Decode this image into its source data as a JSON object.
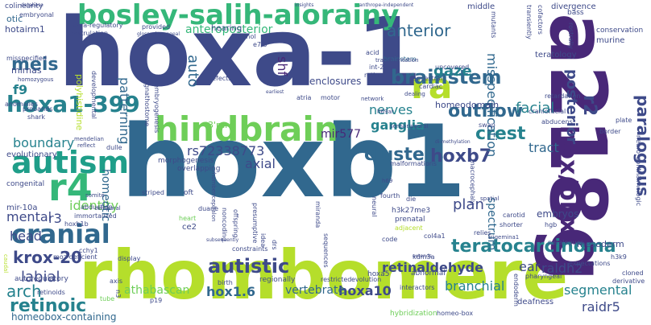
{
  "cloud": {
    "words": [
      {
        "text": "hoxa-1",
        "color": "#3e4a89"
      },
      {
        "text": "hoxb1",
        "color": "#31688e"
      },
      {
        "text": "rhombomere",
        "color": "#b5de2b"
      },
      {
        "text": "a218g",
        "color": "#482878"
      },
      {
        "text": "bosley-salih-alorainy",
        "color": "#35b779"
      },
      {
        "text": "hindbrain",
        "color": "#6ece58"
      },
      {
        "text": "hoxa1-399",
        "color": "#26828e"
      },
      {
        "text": "autism",
        "color": "#1f9e89"
      },
      {
        "text": "r4",
        "color": "#35b779"
      },
      {
        "text": "cranial",
        "color": "#31688e"
      },
      {
        "text": "hox/pbx",
        "color": "#482878"
      },
      {
        "text": "ra",
        "color": "#b5de2b"
      },
      {
        "text": "brainstem",
        "color": "#31688e"
      },
      {
        "text": "anterior",
        "color": "#31688e"
      },
      {
        "text": "outflow",
        "color": "#31688e"
      },
      {
        "text": "clusters",
        "color": "#31688e"
      },
      {
        "text": "crest",
        "color": "#26828e"
      },
      {
        "text": "teratocarcinoma",
        "color": "#26828e"
      },
      {
        "text": "retinaldehyde",
        "color": "#3e4a89"
      },
      {
        "text": "autistic",
        "color": "#3e4a89"
      },
      {
        "text": "krox-20",
        "color": "#3e4a89"
      },
      {
        "text": "retinoic",
        "color": "#26828e"
      },
      {
        "text": "meis",
        "color": "#31688e"
      },
      {
        "text": "labial",
        "color": "#3e4a89"
      },
      {
        "text": "paralogous",
        "color": "#3e4a89"
      },
      {
        "text": "posterior",
        "color": "#3e4a89"
      },
      {
        "text": "r2",
        "color": "#3e4a89"
      },
      {
        "text": "hoxb7",
        "color": "#3e4a89"
      },
      {
        "text": "gaze",
        "color": "#26828e"
      },
      {
        "text": "nerves",
        "color": "#26828e"
      },
      {
        "text": "ganglia",
        "color": "#26828e"
      },
      {
        "text": "facial",
        "color": "#26828e"
      },
      {
        "text": "f9",
        "color": "#26828e"
      },
      {
        "text": "hox1.6",
        "color": "#31688e"
      },
      {
        "text": "hoxa10",
        "color": "#3e4a89"
      },
      {
        "text": "branchial",
        "color": "#26828e"
      },
      {
        "text": "segmental",
        "color": "#26828e"
      },
      {
        "text": "raldh2",
        "color": "#3e4a89"
      },
      {
        "text": "ear",
        "color": "#3e4a89"
      },
      {
        "text": "plan",
        "color": "#3e4a89"
      },
      {
        "text": "spectrum",
        "color": "#31688e"
      },
      {
        "text": "axial",
        "color": "#3e4a89"
      },
      {
        "text": "rs72338773",
        "color": "#3e4a89"
      },
      {
        "text": "mir577",
        "color": "#482878"
      },
      {
        "text": "boundary",
        "color": "#26828e"
      },
      {
        "text": "identity",
        "color": "#6ece58"
      },
      {
        "text": "arch",
        "color": "#26828e"
      },
      {
        "text": "head",
        "color": "#3e4a89"
      },
      {
        "text": "mental",
        "color": "#3e4a89"
      },
      {
        "text": "r3",
        "color": "#3e4a89"
      },
      {
        "text": "auto",
        "color": "#31688e"
      },
      {
        "text": "shf",
        "color": "#482878"
      },
      {
        "text": "patterning",
        "color": "#31688e"
      },
      {
        "text": "homeotic",
        "color": "#31688e"
      },
      {
        "text": "misspecification",
        "color": "#31688e"
      },
      {
        "text": "tract",
        "color": "#31688e"
      },
      {
        "text": "athabascan",
        "color": "#6ece58"
      },
      {
        "text": "vertebrate",
        "color": "#31688e"
      },
      {
        "text": "raidr5",
        "color": "#3e4a89"
      },
      {
        "text": "anteroposterior",
        "color": "#35b779"
      },
      {
        "text": "homeobox-containing",
        "color": "#31688e"
      },
      {
        "text": "brainstem",
        "color": "#31688e"
      },
      {
        "text": "enclosures",
        "color": "#3e4a89"
      },
      {
        "text": "homeodomain",
        "color": "#3e4a89"
      },
      {
        "text": "embryos",
        "color": "#3e4a89"
      },
      {
        "text": "mesoderm",
        "color": "#3e4a89"
      },
      {
        "text": "3'rare",
        "color": "#6ece58"
      },
      {
        "text": "hotairm1",
        "color": "#3e4a89"
      },
      {
        "text": "mirnas",
        "color": "#3e4a89"
      },
      {
        "text": "mir-10a",
        "color": "#3e4a89"
      },
      {
        "text": "polyhistidine",
        "color": "#b5de2b"
      },
      {
        "text": "evolutionary",
        "color": "#3e4a89"
      },
      {
        "text": "congenital",
        "color": "#3e4a89"
      },
      {
        "text": "autoregulatory",
        "color": "#3e4a89"
      },
      {
        "text": "retinoids",
        "color": "#3e4a89"
      },
      {
        "text": "colinearity",
        "color": "#3e4a89"
      },
      {
        "text": "otic",
        "color": "#31688e"
      },
      {
        "text": "embryonal",
        "color": "#3e4a89"
      },
      {
        "text": "hearing",
        "color": "#3e4a89"
      },
      {
        "text": "gastrulation",
        "color": "#3e4a89"
      },
      {
        "text": "para-regulatory",
        "color": "#3e4a89"
      },
      {
        "text": "provided",
        "color": "#3e4a89"
      },
      {
        "text": "retinol",
        "color": "#3e4a89"
      },
      {
        "text": "e7.5",
        "color": "#3e4a89"
      },
      {
        "text": "int-2",
        "color": "#3e4a89"
      },
      {
        "text": "retinyl",
        "color": "#3e4a89"
      },
      {
        "text": "homozygous",
        "color": "#3e4a89"
      },
      {
        "text": "misspecified",
        "color": "#3e4a89"
      },
      {
        "text": "anomalies",
        "color": "#3e4a89"
      },
      {
        "text": "probands",
        "color": "#3e4a89"
      },
      {
        "text": "shark",
        "color": "#3e4a89"
      },
      {
        "text": "mendelian",
        "color": "#3e4a89"
      },
      {
        "text": "reflect",
        "color": "#3e4a89"
      },
      {
        "text": "dulle",
        "color": "#3e4a89"
      },
      {
        "text": "morphogenesis",
        "color": "#3e4a89"
      },
      {
        "text": "overlapping",
        "color": "#3e4a89"
      },
      {
        "text": "malformations",
        "color": "#3e4a89"
      },
      {
        "text": "h69ar",
        "color": "#3e4a89"
      },
      {
        "text": "sensorineural",
        "color": "#3e4a89"
      },
      {
        "text": "network",
        "color": "#3e4a89"
      },
      {
        "text": "atria",
        "color": "#3e4a89"
      },
      {
        "text": "motor",
        "color": "#3e4a89"
      },
      {
        "text": "defects",
        "color": "#3e4a89"
      },
      {
        "text": "developmental",
        "color": "#3e4a89"
      },
      {
        "text": "earliest",
        "color": "#3e4a89"
      },
      {
        "text": "dealing",
        "color": "#3e4a89"
      },
      {
        "text": "ancestral",
        "color": "#3e4a89"
      },
      {
        "text": "cardiac",
        "color": "#3e4a89"
      },
      {
        "text": "uncovered",
        "color": "#3e4a89"
      },
      {
        "text": "acid",
        "color": "#3e4a89"
      },
      {
        "text": "divergence",
        "color": "#3e4a89"
      },
      {
        "text": "conservation",
        "color": "#3e4a89"
      },
      {
        "text": "murine",
        "color": "#3e4a89"
      },
      {
        "text": "teratology",
        "color": "#3e4a89"
      },
      {
        "text": "middle",
        "color": "#3e4a89"
      },
      {
        "text": "bass",
        "color": "#3e4a89"
      },
      {
        "text": "retardation",
        "color": "#3e4a89"
      },
      {
        "text": "abducens",
        "color": "#3e4a89"
      },
      {
        "text": "craniofacial",
        "color": "#3e4a89"
      },
      {
        "text": "border",
        "color": "#3e4a89"
      },
      {
        "text": "plate",
        "color": "#3e4a89"
      },
      {
        "text": "neuro-ophthalmologic",
        "color": "#3e4a89"
      },
      {
        "text": "swap",
        "color": "#3e4a89"
      },
      {
        "text": "di-methylation",
        "color": "#3e4a89"
      },
      {
        "text": "h69",
        "color": "#3e4a89"
      },
      {
        "text": "fourth",
        "color": "#3e4a89"
      },
      {
        "text": "die",
        "color": "#3e4a89"
      },
      {
        "text": "h3k27me3",
        "color": "#3e4a89"
      },
      {
        "text": "prenatal",
        "color": "#3e4a89"
      },
      {
        "text": "adjacent",
        "color": "#b5de2b"
      },
      {
        "text": "col4a1",
        "color": "#3e4a89"
      },
      {
        "text": "carotid",
        "color": "#3e4a89"
      },
      {
        "text": "shorter",
        "color": "#3e4a89"
      },
      {
        "text": "relies",
        "color": "#3e4a89"
      },
      {
        "text": "trigemina1",
        "color": "#3e4a89"
      },
      {
        "text": "spatial",
        "color": "#3e4a89"
      },
      {
        "text": "paralogues",
        "color": "#3e4a89"
      },
      {
        "text": "h3k9",
        "color": "#3e4a89"
      },
      {
        "text": "expectations",
        "color": "#3e4a89"
      },
      {
        "text": "cloned",
        "color": "#3e4a89"
      },
      {
        "text": "derivative",
        "color": "#3e4a89"
      },
      {
        "text": "pharyngeal",
        "color": "#3e4a89"
      },
      {
        "text": "deafness",
        "color": "#3e4a89"
      },
      {
        "text": "homeo-box",
        "color": "#3e4a89"
      },
      {
        "text": "hoxa5",
        "color": "#3e4a89"
      },
      {
        "text": "abnormal",
        "color": "#3e4a89"
      },
      {
        "text": "interactors",
        "color": "#3e4a89"
      },
      {
        "text": "restricted",
        "color": "#3e4a89"
      },
      {
        "text": "evolution",
        "color": "#3e4a89"
      },
      {
        "text": "kdm3a",
        "color": "#3e4a89"
      },
      {
        "text": "code",
        "color": "#3e4a89"
      },
      {
        "text": "neural",
        "color": "#3e4a89"
      },
      {
        "text": "sequences",
        "color": "#3e4a89"
      },
      {
        "text": "miranda",
        "color": "#3e4a89"
      },
      {
        "text": "idea",
        "color": "#3e4a89"
      },
      {
        "text": "drs",
        "color": "#3e4a89"
      },
      {
        "text": "regionally",
        "color": "#3e4a89"
      },
      {
        "text": "birth",
        "color": "#3e4a89"
      },
      {
        "text": "noncoding",
        "color": "#3e4a89"
      },
      {
        "text": "offspring",
        "color": "#3e4a89"
      },
      {
        "text": "presumptive",
        "color": "#3e4a89"
      },
      {
        "text": "duane",
        "color": "#3e4a89"
      },
      {
        "text": "heart",
        "color": "#6ece58"
      },
      {
        "text": "ce2",
        "color": "#3e4a89"
      },
      {
        "text": "striped",
        "color": "#3e4a89"
      },
      {
        "text": "immortalized",
        "color": "#3e4a89"
      },
      {
        "text": "abduction",
        "color": "#3e4a89"
      },
      {
        "text": "hoxb1b",
        "color": "#3e4a89"
      },
      {
        "text": "moz-deficient",
        "color": "#3e4a89"
      },
      {
        "text": "somite",
        "color": "#3e4a89"
      },
      {
        "text": "temporal",
        "color": "#3e4a89"
      },
      {
        "text": "cchy1",
        "color": "#3e4a89"
      },
      {
        "text": "display",
        "color": "#3e4a89"
      },
      {
        "text": "axis",
        "color": "#3e4a89"
      },
      {
        "text": "p19",
        "color": "#3e4a89"
      },
      {
        "text": "tube",
        "color": "#6ece58"
      },
      {
        "text": "n3",
        "color": "#3e4a89"
      },
      {
        "text": "caudal",
        "color": "#b5de2b"
      },
      {
        "text": "embryogenesis",
        "color": "#3e4a89"
      },
      {
        "text": "gnathostome",
        "color": "#3e4a89"
      },
      {
        "text": "oft",
        "color": "#3e4a89"
      },
      {
        "text": "hgb",
        "color": "#3e4a89"
      },
      {
        "text": "endoderm",
        "color": "#3e4a89"
      },
      {
        "text": "hybridization",
        "color": "#6ece58"
      },
      {
        "text": "extends",
        "color": "#3e4a89"
      },
      {
        "text": "constraints",
        "color": "#3e4a89"
      },
      {
        "text": "subsequently",
        "color": "#3e4a89"
      },
      {
        "text": "insights",
        "color": "#3e4a89"
      },
      {
        "text": "anthrope-independent",
        "color": "#3e4a89"
      },
      {
        "text": "database",
        "color": "#3e4a89"
      },
      {
        "text": "glossopharyngeal",
        "color": "#3e4a89"
      },
      {
        "text": "transplantation",
        "color": "#3e4a89"
      },
      {
        "text": "rostrally",
        "color": "#3e4a89"
      },
      {
        "text": "transiently",
        "color": "#3e4a89"
      },
      {
        "text": "cofactors",
        "color": "#3e4a89"
      },
      {
        "text": "macrocephaly",
        "color": "#3e4a89"
      },
      {
        "text": "rhombencephalon",
        "color": "#3e4a89"
      },
      {
        "text": "mutants",
        "color": "#3e4a89"
      }
    ]
  }
}
